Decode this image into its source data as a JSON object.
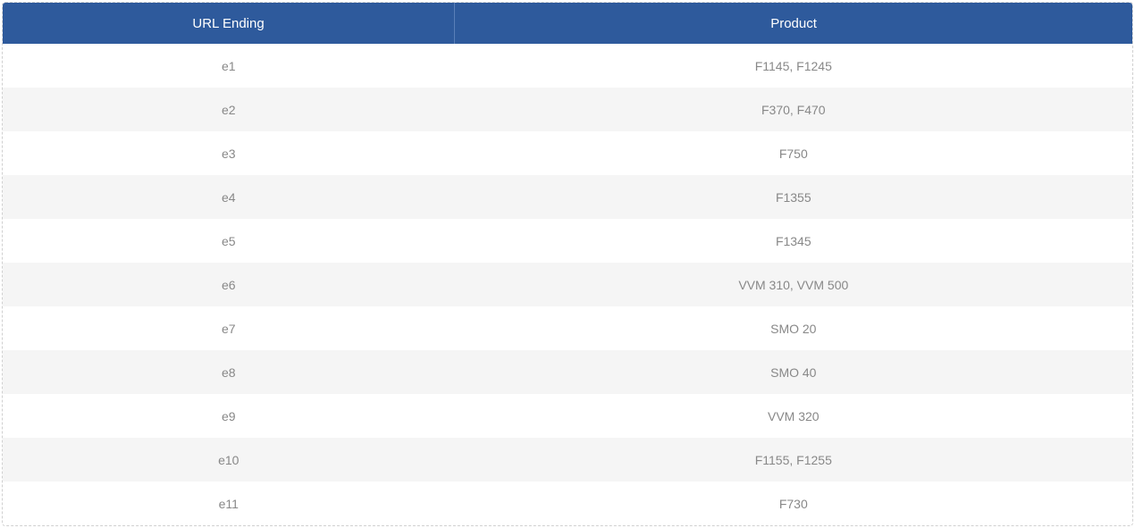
{
  "table": {
    "type": "table",
    "header_bg_color": "#2e5a9c",
    "header_text_color": "#ffffff",
    "header_fontsize": 15,
    "cell_fontsize": 14,
    "cell_text_color": "#888888",
    "row_odd_bg": "#ffffff",
    "row_even_bg": "#f5f5f5",
    "border_color": "#d0d0d0",
    "border_style": "dashed",
    "columns": [
      {
        "key": "url_ending",
        "label": "URL Ending",
        "width_pct": 40
      },
      {
        "key": "product",
        "label": "Product",
        "width_pct": 60
      }
    ],
    "rows": [
      {
        "url_ending": "e1",
        "product": "F1145, F1245"
      },
      {
        "url_ending": "e2",
        "product": "F370, F470"
      },
      {
        "url_ending": "e3",
        "product": "F750"
      },
      {
        "url_ending": "e4",
        "product": "F1355"
      },
      {
        "url_ending": "e5",
        "product": "F1345"
      },
      {
        "url_ending": "e6",
        "product": "VVM 310, VVM 500"
      },
      {
        "url_ending": "e7",
        "product": "SMO 20"
      },
      {
        "url_ending": "e8",
        "product": "SMO 40"
      },
      {
        "url_ending": "e9",
        "product": "VVM 320"
      },
      {
        "url_ending": "e10",
        "product": "F1155, F1255"
      },
      {
        "url_ending": "e11",
        "product": "F730"
      }
    ]
  }
}
